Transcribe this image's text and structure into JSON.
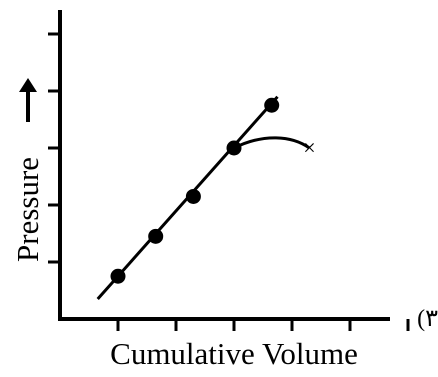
{
  "chart_data": {
    "type": "scatter",
    "xlabel": "Cumulative Volume",
    "ylabel": "Pressure",
    "panel_label": "(٣",
    "x_tick_count": 6,
    "y_tick_count": 5,
    "grid": false,
    "x_ticks": [
      1,
      2,
      3,
      4,
      5,
      6
    ],
    "y_ticks": [
      1,
      2,
      3,
      4,
      5
    ],
    "xlim": [
      0,
      7.2
    ],
    "ylim": [
      0,
      5.6
    ],
    "points": [
      {
        "x": 1.0,
        "y": 0.75
      },
      {
        "x": 1.65,
        "y": 1.45
      },
      {
        "x": 2.3,
        "y": 2.15
      },
      {
        "x": 3.0,
        "y": 3.0
      },
      {
        "x": 3.65,
        "y": 3.75
      }
    ],
    "fit_line": {
      "x": [
        0.65,
        3.75
      ],
      "y": [
        0.35,
        3.9
      ]
    },
    "deviation_curve": {
      "x": [
        3.0,
        3.5,
        4.0,
        4.3
      ],
      "y": [
        3.0,
        3.15,
        3.15,
        3.0
      ]
    },
    "end_marker": {
      "x": 4.3,
      "y": 3.0,
      "symbol": "×"
    },
    "colors": {
      "ink": "#000000",
      "background": "#ffffff"
    }
  }
}
